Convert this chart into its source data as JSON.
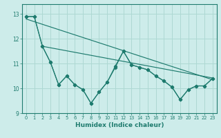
{
  "xlabel": "Humidex (Indice chaleur)",
  "background_color": "#cdecea",
  "line_color": "#1e7b6e",
  "grid_color": "#aed8d3",
  "xlim": [
    -0.5,
    23.5
  ],
  "ylim": [
    9,
    13.4
  ],
  "yticks": [
    9,
    10,
    11,
    12,
    13
  ],
  "xticks": [
    0,
    1,
    2,
    3,
    4,
    5,
    6,
    7,
    8,
    9,
    10,
    11,
    12,
    13,
    14,
    15,
    16,
    17,
    18,
    19,
    20,
    21,
    22,
    23
  ],
  "line1_x": [
    0,
    1,
    2,
    3,
    4,
    5,
    6,
    7,
    8,
    9,
    10,
    11,
    12,
    13,
    14,
    15,
    16,
    17,
    18,
    19,
    20,
    21,
    22,
    23
  ],
  "line1_y": [
    12.9,
    12.9,
    11.7,
    11.05,
    10.15,
    10.5,
    10.15,
    9.95,
    9.4,
    9.85,
    10.25,
    10.85,
    11.5,
    10.95,
    10.85,
    10.75,
    10.5,
    10.3,
    10.05,
    9.55,
    9.95,
    10.1,
    10.1,
    10.4
  ],
  "line2_y": [
    12.9,
    12.9,
    11.7,
    11.05,
    10.15,
    10.5,
    10.15,
    9.95,
    9.4,
    9.85,
    10.25,
    10.9,
    11.5,
    10.95,
    10.85,
    10.75,
    10.5,
    10.3,
    10.05,
    9.55,
    9.95,
    10.1,
    10.1,
    10.4
  ],
  "trend1_x": [
    0,
    23
  ],
  "trend1_y": [
    12.8,
    10.35
  ],
  "trend2_x": [
    2,
    23
  ],
  "trend2_y": [
    11.7,
    10.42
  ]
}
